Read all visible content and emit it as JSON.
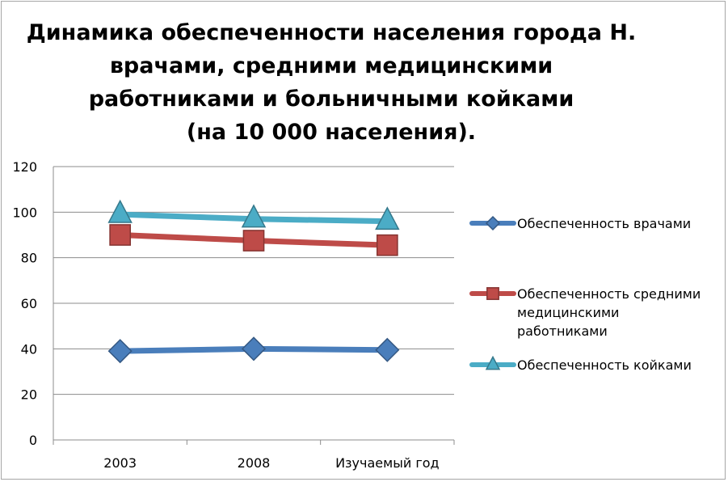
{
  "title_lines": [
    "Динамика обеспеченности населения города Н.",
    "врачами, средними медицинскими",
    "работниками и больничными койками",
    "(на 10 000 населения)."
  ],
  "chart_data": {
    "type": "line",
    "title": "Динамика обеспеченности населения города Н. врачами, средними медицинскими работниками и больничными койками (на 10 000 населения).",
    "categories": [
      "2003",
      "2008",
      "Изучаемый год"
    ],
    "ylim": [
      0,
      120
    ],
    "yticks": [
      "0",
      "20",
      "40",
      "60",
      "80",
      "100",
      "120"
    ],
    "grid": true,
    "legend_position": "right",
    "series": [
      {
        "name": "Обеспеченность врачами",
        "values": [
          39,
          40,
          39.5
        ],
        "color": "#4a7ebb",
        "marker": "diamond"
      },
      {
        "name": "Обеспеченность средними медицинскими работниками",
        "values": [
          90,
          87.5,
          85.5
        ],
        "color": "#be4b48",
        "marker": "square"
      },
      {
        "name": "Обеспеченность койками",
        "values": [
          99,
          97,
          96
        ],
        "color": "#4bacc6",
        "marker": "triangle"
      }
    ]
  },
  "legend": [
    {
      "label_lines": [
        "Обеспеченность врачами"
      ]
    },
    {
      "label_lines": [
        "Обеспеченность средними",
        "медицинскими",
        "работниками"
      ]
    },
    {
      "label_lines": [
        "Обеспеченность койками"
      ]
    }
  ]
}
